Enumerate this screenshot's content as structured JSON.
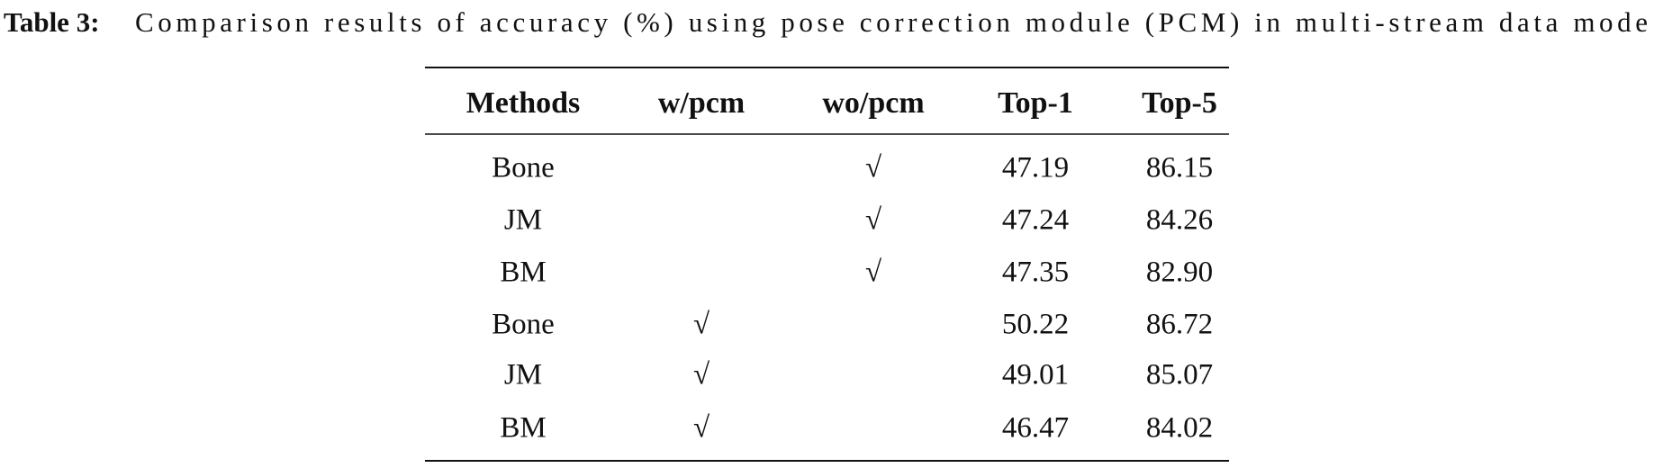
{
  "caption": {
    "label": "Table 3:",
    "text": "Comparison results of accuracy (%) using pose correction module (PCM) in multi-stream data mode"
  },
  "table": {
    "header": [
      "Methods",
      "w/pcm",
      "wo/pcm",
      "Top-1",
      "Top-5"
    ],
    "rows": [
      [
        "Bone",
        null,
        "√",
        "47.19",
        "86.15"
      ],
      [
        "JM",
        null,
        "√",
        "47.24",
        "84.26"
      ],
      [
        "BM",
        null,
        "√",
        "47.35",
        "82.90"
      ],
      [
        "Bone",
        "√",
        null,
        "50.22",
        "86.72"
      ],
      [
        "JM",
        "√",
        null,
        "49.01",
        "85.07"
      ],
      [
        "BM",
        "√",
        null,
        "46.47",
        "84.02"
      ]
    ]
  }
}
